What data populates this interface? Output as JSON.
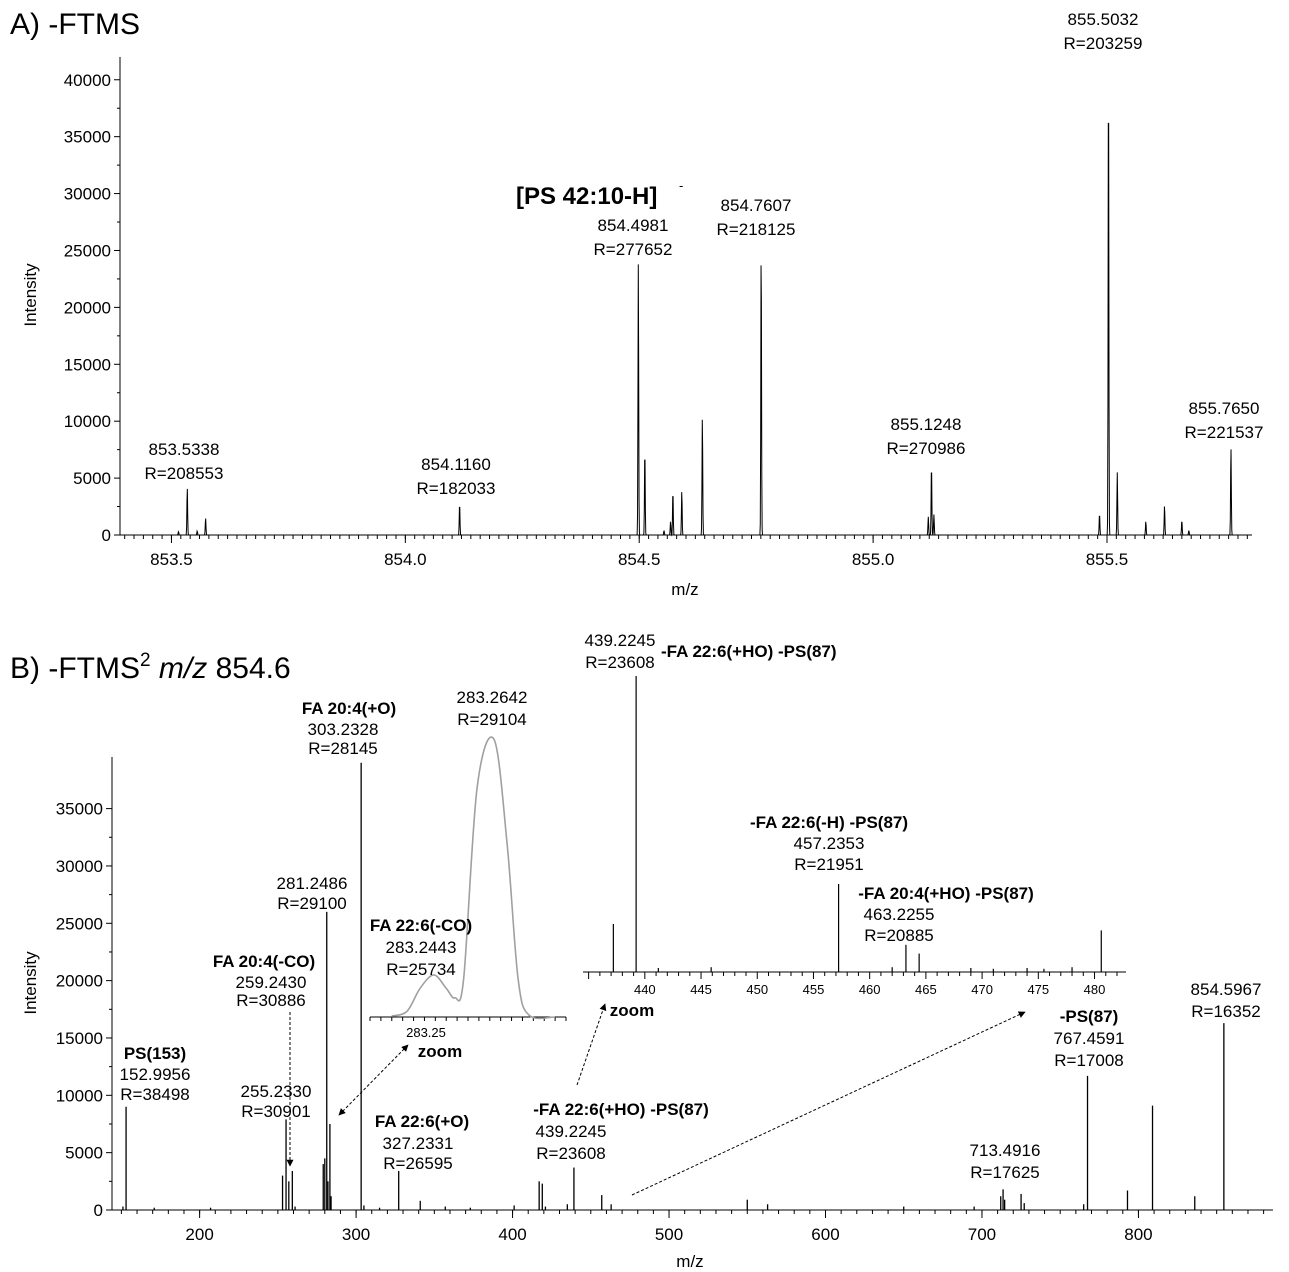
{
  "chart_data": [
    {
      "type": "line",
      "panel_label": "A) -FTMS",
      "xlabel": "m/z",
      "ylabel": "Intensity",
      "xlim": [
        853.39,
        855.81
      ],
      "ylim": [
        0,
        42000
      ],
      "xticks": [
        853.5,
        854.0,
        854.5,
        855.0,
        855.5
      ],
      "xtick_labels": [
        "853.5",
        "854.0",
        "854.5",
        "855.0",
        "855.5"
      ],
      "yticks": [
        0,
        5000,
        10000,
        15000,
        20000,
        25000,
        30000,
        35000,
        40000
      ],
      "ytick_labels": [
        "0",
        "5000",
        "10000",
        "15000",
        "20000",
        "25000",
        "30000",
        "35000",
        "40000"
      ],
      "peak_width": 0.0035,
      "peaks": [
        {
          "x": 853.515,
          "y": 300
        },
        {
          "x": 853.5338,
          "y": 4200
        },
        {
          "x": 853.555,
          "y": 350
        },
        {
          "x": 853.573,
          "y": 1500
        },
        {
          "x": 854.116,
          "y": 2800
        },
        {
          "x": 854.4981,
          "y": 24000
        },
        {
          "x": 854.512,
          "y": 7600
        },
        {
          "x": 854.553,
          "y": 400
        },
        {
          "x": 854.567,
          "y": 1200
        },
        {
          "x": 854.572,
          "y": 3900
        },
        {
          "x": 854.591,
          "y": 3900
        },
        {
          "x": 854.635,
          "y": 10500
        },
        {
          "x": 854.7607,
          "y": 25700
        },
        {
          "x": 855.118,
          "y": 1600
        },
        {
          "x": 855.1248,
          "y": 6300
        },
        {
          "x": 855.13,
          "y": 1800
        },
        {
          "x": 855.484,
          "y": 1900
        },
        {
          "x": 855.5032,
          "y": 41800
        },
        {
          "x": 855.522,
          "y": 5500
        },
        {
          "x": 855.583,
          "y": 1200
        },
        {
          "x": 855.623,
          "y": 2600
        },
        {
          "x": 855.66,
          "y": 1300
        },
        {
          "x": 855.675,
          "y": 400
        },
        {
          "x": 855.765,
          "y": 7800
        }
      ],
      "annotations": [
        {
          "bold": "[PS 42:10-H]",
          "sup": "-",
          "lines": [
            "854.4981",
            "R=277652"
          ]
        },
        {
          "lines": [
            "853.5338",
            "R=208553"
          ]
        },
        {
          "lines": [
            "854.1160",
            "R=182033"
          ]
        },
        {
          "lines": [
            "854.7607",
            "R=218125"
          ]
        },
        {
          "lines": [
            "855.1248",
            "R=270986"
          ]
        },
        {
          "lines": [
            "855.5032",
            "R=203259"
          ]
        },
        {
          "lines": [
            "855.7650",
            "R=221537"
          ]
        }
      ]
    },
    {
      "type": "bar",
      "panel_label_parts": [
        "B) -FTMS",
        "2",
        "m/z",
        "854.6"
      ],
      "xlabel": "m/z",
      "ylabel": "Intensity",
      "xlim": [
        144,
        886
      ],
      "ylim": [
        0,
        39500
      ],
      "xticks": [
        200,
        300,
        400,
        500,
        600,
        700,
        800
      ],
      "xtick_labels": [
        "200",
        "300",
        "400",
        "500",
        "600",
        "700",
        "800"
      ],
      "yticks": [
        0,
        5000,
        10000,
        15000,
        20000,
        25000,
        30000,
        35000
      ],
      "ytick_labels": [
        "0",
        "5000",
        "10000",
        "15000",
        "20000",
        "25000",
        "30000",
        "35000"
      ],
      "peaks": [
        {
          "x": 151.0,
          "y": 300
        },
        {
          "x": 152.9956,
          "y": 9000
        },
        {
          "x": 171.0,
          "y": 200
        },
        {
          "x": 207.0,
          "y": 200
        },
        {
          "x": 253.0,
          "y": 3000
        },
        {
          "x": 255.233,
          "y": 7900
        },
        {
          "x": 257.0,
          "y": 2500
        },
        {
          "x": 259.243,
          "y": 3400
        },
        {
          "x": 261.0,
          "y": 300
        },
        {
          "x": 279.0,
          "y": 4000
        },
        {
          "x": 280.0,
          "y": 4500
        },
        {
          "x": 281.2486,
          "y": 26000
        },
        {
          "x": 282.0,
          "y": 2500
        },
        {
          "x": 283.2642,
          "y": 7500
        },
        {
          "x": 284.0,
          "y": 1200
        },
        {
          "x": 303.2328,
          "y": 39000
        },
        {
          "x": 305.0,
          "y": 400
        },
        {
          "x": 315.0,
          "y": 200
        },
        {
          "x": 327.2331,
          "y": 3400
        },
        {
          "x": 341.0,
          "y": 800
        },
        {
          "x": 357.0,
          "y": 300
        },
        {
          "x": 373.0,
          "y": 200
        },
        {
          "x": 401.0,
          "y": 400
        },
        {
          "x": 417.0,
          "y": 2500
        },
        {
          "x": 419.0,
          "y": 2300
        },
        {
          "x": 421.0,
          "y": 300
        },
        {
          "x": 435.0,
          "y": 500
        },
        {
          "x": 439.2245,
          "y": 3700
        },
        {
          "x": 457.0,
          "y": 1300
        },
        {
          "x": 463.0,
          "y": 500
        },
        {
          "x": 550.0,
          "y": 900
        },
        {
          "x": 563.0,
          "y": 500
        },
        {
          "x": 650.0,
          "y": 300
        },
        {
          "x": 695.0,
          "y": 300
        },
        {
          "x": 712.0,
          "y": 1200
        },
        {
          "x": 713.4916,
          "y": 1800
        },
        {
          "x": 714.5,
          "y": 900
        },
        {
          "x": 725.0,
          "y": 1400
        },
        {
          "x": 727.0,
          "y": 600
        },
        {
          "x": 765.0,
          "y": 500
        },
        {
          "x": 767.4591,
          "y": 11700
        },
        {
          "x": 793.0,
          "y": 1700
        },
        {
          "x": 809.0,
          "y": 9100
        },
        {
          "x": 836.0,
          "y": 1200
        },
        {
          "x": 854.5967,
          "y": 16300
        }
      ],
      "annotations": [
        {
          "bold": "PS(153)",
          "lines": [
            "152.9956",
            "R=38498"
          ]
        },
        {
          "lines": [
            "255.2330",
            "R=30901"
          ]
        },
        {
          "bold": "FA 20:4(-CO)",
          "lines": [
            "259.2430",
            "R=30886"
          ]
        },
        {
          "lines": [
            "281.2486",
            "R=29100"
          ]
        },
        {
          "bold": "FA 20:4(+O)",
          "lines": [
            "303.2328",
            "R=28145"
          ]
        },
        {
          "bold": "FA 22:6(+O)",
          "lines": [
            "327.2331",
            "R=26595"
          ]
        },
        {
          "bold": "-FA 22:6(+HO) -PS(87)",
          "lines": [
            "439.2245",
            "R=23608"
          ]
        },
        {
          "lines": [
            "713.4916",
            "R=17625"
          ]
        },
        {
          "bold": "-PS(87)",
          "lines": [
            "767.4591",
            "R=17008"
          ]
        },
        {
          "lines": [
            "854.5967",
            "R=16352"
          ]
        }
      ],
      "zoom_label": "zoom"
    },
    {
      "type": "line",
      "role": "inset-zoom-283",
      "xtick_labels": [
        "283.25"
      ],
      "profile": [
        [
          283.225,
          50
        ],
        [
          283.232,
          300
        ],
        [
          283.238,
          1500
        ],
        [
          283.2443,
          2200
        ],
        [
          283.25,
          1500
        ],
        [
          283.254,
          1000
        ],
        [
          283.258,
          2000
        ],
        [
          283.2642,
          12000
        ],
        [
          283.272,
          14500
        ],
        [
          283.278,
          9000
        ],
        [
          283.283,
          2000
        ],
        [
          283.288,
          100
        ],
        [
          283.3,
          0
        ]
      ],
      "ylim": [
        0,
        15000
      ],
      "annotations": [
        {
          "bold": "FA 22:6(-CO)",
          "lines": [
            "283.2443",
            "R=25734"
          ]
        },
        {
          "lines": [
            "283.2642",
            "R=29104"
          ]
        }
      ]
    },
    {
      "type": "bar",
      "role": "inset-zoom-437-482",
      "xlim": [
        434.5,
        482.8
      ],
      "xticks": [
        440,
        445,
        450,
        455,
        460,
        465,
        470,
        475,
        480
      ],
      "xtick_labels": [
        "440",
        "445",
        "450",
        "455",
        "460",
        "465",
        "470",
        "475",
        "480"
      ],
      "ylim": [
        0,
        3800
      ],
      "peaks": [
        {
          "x": 437.2,
          "y": 600
        },
        {
          "x": 439.2245,
          "y": 3700
        },
        {
          "x": 441.2,
          "y": 50
        },
        {
          "x": 445.9,
          "y": 60
        },
        {
          "x": 457.2353,
          "y": 1100
        },
        {
          "x": 462.0,
          "y": 60
        },
        {
          "x": 463.2255,
          "y": 340
        },
        {
          "x": 464.4,
          "y": 230
        },
        {
          "x": 469.0,
          "y": 50
        },
        {
          "x": 471.0,
          "y": 40
        },
        {
          "x": 474.0,
          "y": 50
        },
        {
          "x": 475.5,
          "y": 40
        },
        {
          "x": 478.0,
          "y": 60
        },
        {
          "x": 480.6,
          "y": 520
        }
      ],
      "annotations": [
        {
          "bold": "-FA 22:6(+HO) -PS(87)",
          "lines": [
            "439.2245",
            "R=23608"
          ]
        },
        {
          "bold": "-FA 22:6(-H) -PS(87)",
          "lines": [
            "457.2353",
            "R=21951"
          ]
        },
        {
          "bold": "-FA 20:4(+HO) -PS(87)",
          "lines": [
            "463.2255",
            "R=20885"
          ]
        }
      ]
    }
  ]
}
